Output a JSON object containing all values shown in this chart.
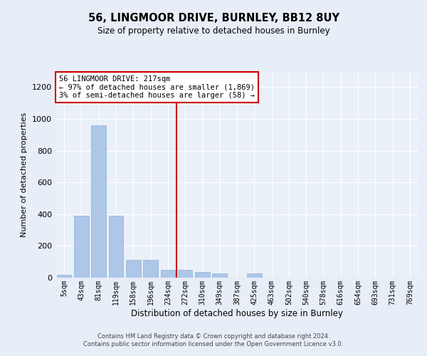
{
  "title1": "56, LINGMOOR DRIVE, BURNLEY, BB12 8UY",
  "title2": "Size of property relative to detached houses in Burnley",
  "xlabel": "Distribution of detached houses by size in Burnley",
  "ylabel": "Number of detached properties",
  "bar_color": "#aec6e8",
  "bar_edge_color": "#8ab4d8",
  "background_color": "#e8eef8",
  "plot_bg_color": "#eaf0f8",
  "vline_color": "#cc0000",
  "vline_x": 6.5,
  "annotation_text": "56 LINGMOOR DRIVE: 217sqm\n← 97% of detached houses are smaller (1,869)\n3% of semi-detached houses are larger (58) →",
  "annotation_box_color": "#ffffff",
  "annotation_box_edge": "#cc0000",
  "categories": [
    "5sqm",
    "43sqm",
    "81sqm",
    "119sqm",
    "158sqm",
    "196sqm",
    "234sqm",
    "272sqm",
    "310sqm",
    "349sqm",
    "387sqm",
    "425sqm",
    "463sqm",
    "502sqm",
    "540sqm",
    "578sqm",
    "616sqm",
    "654sqm",
    "693sqm",
    "731sqm",
    "769sqm"
  ],
  "values": [
    20,
    390,
    960,
    390,
    110,
    110,
    50,
    50,
    35,
    25,
    0,
    25,
    0,
    0,
    0,
    0,
    0,
    0,
    0,
    0,
    0
  ],
  "ylim": [
    0,
    1300
  ],
  "yticks": [
    0,
    200,
    400,
    600,
    800,
    1000,
    1200
  ],
  "footer1": "Contains HM Land Registry data © Crown copyright and database right 2024.",
  "footer2": "Contains public sector information licensed under the Open Government Licence v3.0."
}
